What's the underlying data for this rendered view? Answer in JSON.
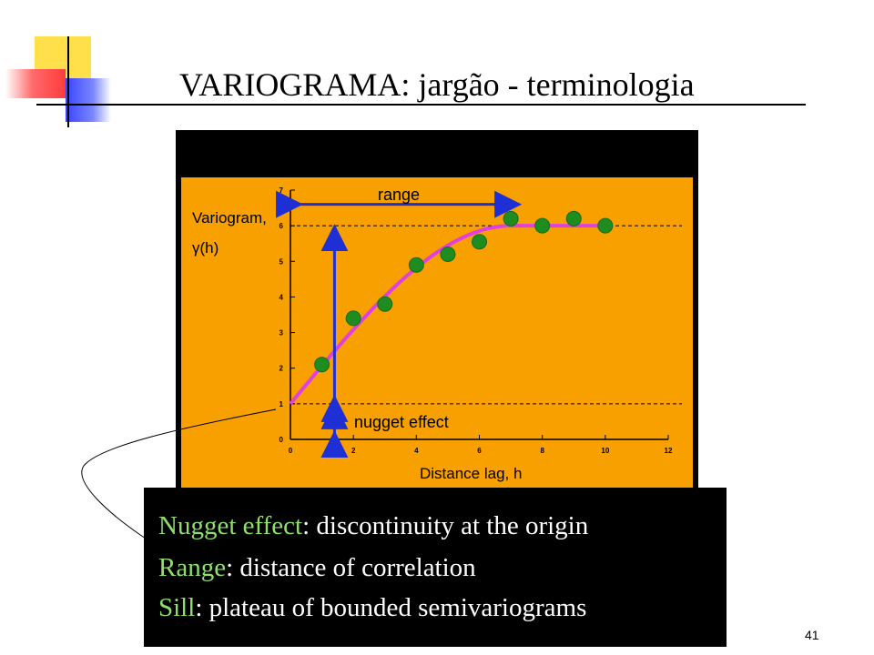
{
  "slide": {
    "title": "VARIOGRAMA: jargão - terminologia",
    "page_number": "41"
  },
  "colors": {
    "panel": "#f7a000",
    "curve": "#e040e0",
    "points": "#1e8c1e",
    "arrows": "#1e2fd6",
    "legend_term": "#8fe06b"
  },
  "definitions": [
    {
      "term": "Nugget effect",
      "text": ": discontinuity at the origin"
    },
    {
      "term": "Range",
      "text": ": distance of correlation"
    },
    {
      "term": "Sill",
      "text": ": plateau of bounded semivariograms"
    }
  ],
  "chart_data": {
    "type": "scatter",
    "xlabel": "Distance lag, h",
    "ylabel_line1": "Variogram,",
    "ylabel_line2": "γ(h)",
    "xlim": [
      0,
      12
    ],
    "ylim": [
      0,
      7
    ],
    "x_ticks": [
      0,
      2,
      4,
      6,
      8,
      10,
      12
    ],
    "y_ticks": [
      0,
      1,
      2,
      3,
      4,
      5,
      6,
      7
    ],
    "points": [
      {
        "x": 1.0,
        "y": 2.1
      },
      {
        "x": 2.0,
        "y": 3.4
      },
      {
        "x": 3.0,
        "y": 3.8
      },
      {
        "x": 4.0,
        "y": 4.9
      },
      {
        "x": 5.0,
        "y": 5.2
      },
      {
        "x": 6.0,
        "y": 5.55
      },
      {
        "x": 7.0,
        "y": 6.2
      },
      {
        "x": 8.0,
        "y": 6.0
      },
      {
        "x": 9.0,
        "y": 6.2
      },
      {
        "x": 10.0,
        "y": 6.0
      }
    ],
    "model": {
      "nugget": 1.0,
      "sill": 6.0,
      "range": 7.0
    },
    "annotations": {
      "range_label": "range",
      "nugget_label": "nugget effect",
      "nugget_arrow_x": 1.4
    },
    "grid": false
  }
}
